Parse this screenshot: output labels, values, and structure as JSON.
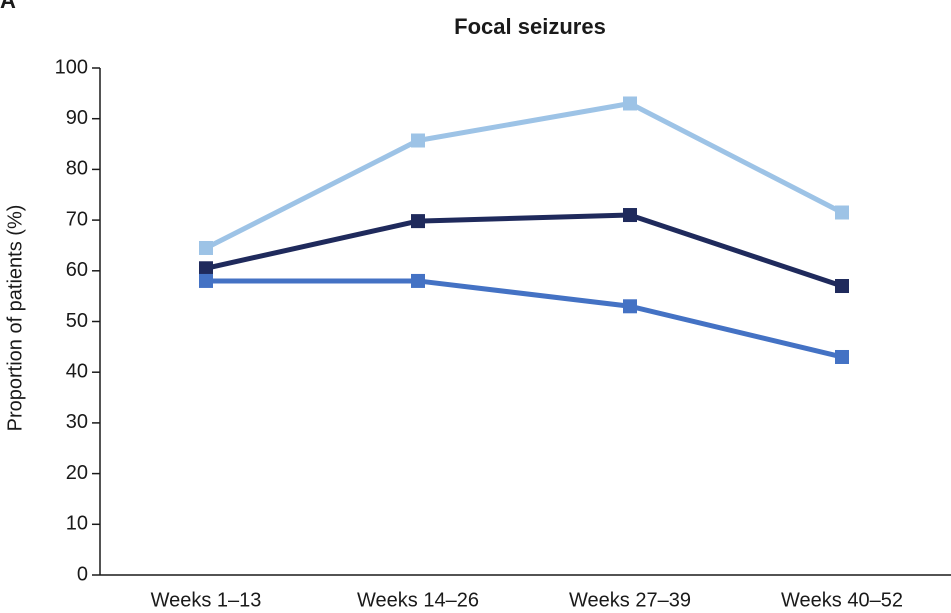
{
  "panel_label": "A",
  "chart_data": {
    "type": "line",
    "title": "Focal seizures",
    "y_label": "Proportion of patients (%)",
    "categories": [
      "Weeks 1–13",
      "Weeks 14–26",
      "Weeks 27–39",
      "Weeks 40–52"
    ],
    "series": [
      {
        "color": "#9dc3e6",
        "values": [
          64.5,
          85.7,
          93,
          71.5
        ]
      },
      {
        "color": "#1f2a5c",
        "values": [
          60.5,
          69.8,
          71,
          57
        ]
      },
      {
        "color": "#4472c4",
        "values": [
          58,
          58,
          53,
          43
        ]
      }
    ],
    "ylim": [
      0,
      100
    ],
    "yticks": [
      0,
      10,
      20,
      30,
      40,
      50,
      60,
      70,
      80,
      90,
      100
    ],
    "grid": false
  }
}
